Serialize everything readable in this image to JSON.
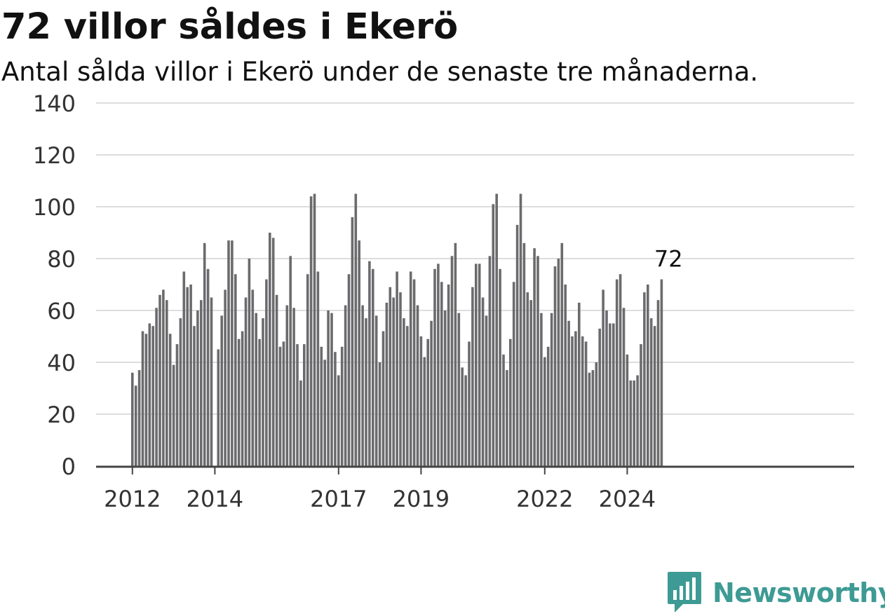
{
  "title": "72 villor såldes i Ekerö",
  "subtitle": "Antal sålda villor i Ekerö under de senaste tre månaderna.",
  "brand": {
    "name": "Newsworthy",
    "icon": "newsworthy-logo-icon"
  },
  "colors": {
    "bar": "#6b6b6e",
    "highlight": "#1a9c8e",
    "grid": "#dddddd",
    "axis": "#444444",
    "text": "#333333",
    "brand": "#3e9a94"
  },
  "chart_data": {
    "type": "bar",
    "title": "72 villor såldes i Ekerö",
    "subtitle": "Antal sålda villor i Ekerö under de senaste tre månaderna.",
    "x_start": "2012-01",
    "x_interval": "month",
    "ylim": [
      0,
      140
    ],
    "yticks": [
      0,
      20,
      40,
      60,
      80,
      100,
      120,
      140
    ],
    "xtick_labels": [
      "2012",
      "2014",
      "2017",
      "2019",
      "2022",
      "2024"
    ],
    "grid": true,
    "highlight": {
      "index": 156,
      "value": 72,
      "label": "72"
    },
    "values": [
      36,
      31,
      37,
      52,
      51,
      55,
      54,
      61,
      66,
      68,
      64,
      51,
      39,
      47,
      57,
      75,
      69,
      70,
      54,
      60,
      64,
      86,
      76,
      65,
      0,
      45,
      58,
      68,
      87,
      87,
      74,
      49,
      52,
      65,
      80,
      68,
      59,
      49,
      57,
      72,
      90,
      88,
      66,
      46,
      48,
      62,
      81,
      61,
      47,
      33,
      47,
      74,
      104,
      105,
      75,
      46,
      41,
      60,
      59,
      44,
      35,
      46,
      62,
      74,
      96,
      105,
      87,
      62,
      57,
      79,
      76,
      58,
      40,
      52,
      63,
      69,
      65,
      75,
      67,
      57,
      54,
      75,
      72,
      62,
      50,
      42,
      49,
      56,
      76,
      78,
      71,
      60,
      70,
      81,
      86,
      59,
      38,
      35,
      48,
      69,
      78,
      78,
      65,
      58,
      81,
      101,
      105,
      76,
      43,
      37,
      49,
      71,
      93,
      105,
      86,
      67,
      64,
      84,
      81,
      59,
      42,
      46,
      59,
      77,
      80,
      86,
      70,
      56,
      50,
      52,
      63,
      50,
      48,
      36,
      37,
      40,
      53,
      68,
      60,
      55,
      55,
      72,
      74,
      61,
      43,
      33,
      33,
      35,
      47,
      67,
      70,
      57,
      54,
      64,
      72
    ]
  }
}
